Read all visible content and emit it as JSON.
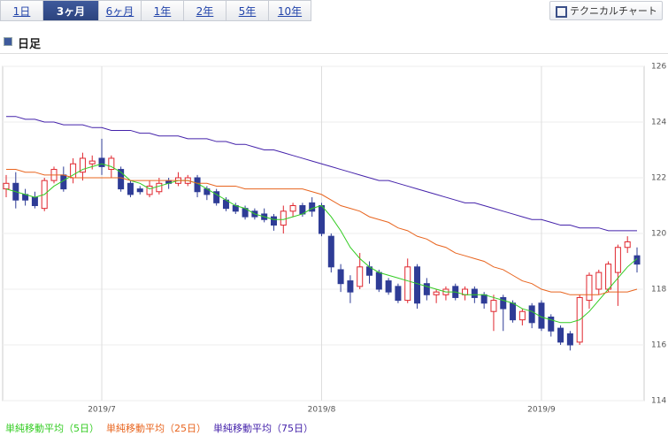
{
  "tabs": [
    {
      "label": "1日",
      "active": false
    },
    {
      "label": "3ヶ月",
      "active": true
    },
    {
      "label": "6ヶ月",
      "active": false
    },
    {
      "label": "1年",
      "active": false
    },
    {
      "label": "2年",
      "active": false
    },
    {
      "label": "5年",
      "active": false
    },
    {
      "label": "10年",
      "active": false
    }
  ],
  "button": "テクニカルチャート",
  "chart_data": {
    "type": "candlestick",
    "title": "日足",
    "categories": [
      null,
      null,
      null,
      null,
      null,
      null,
      null,
      null,
      null,
      null,
      "2019/7",
      null,
      null,
      null,
      null,
      null,
      null,
      null,
      null,
      null,
      null,
      null,
      null,
      null,
      null,
      null,
      null,
      null,
      null,
      null,
      null,
      null,
      null,
      "2019/8",
      null,
      null,
      null,
      null,
      null,
      null,
      null,
      null,
      null,
      null,
      null,
      null,
      null,
      null,
      null,
      null,
      null,
      null,
      null,
      null,
      null,
      null,
      "2019/9",
      null,
      null,
      null,
      null,
      null,
      null,
      null,
      null,
      null,
      null
    ],
    "open": [
      121.6,
      121.8,
      121.4,
      121.3,
      120.9,
      121.9,
      122.1,
      122.0,
      122.2,
      122.5,
      122.7,
      122.3,
      122.3,
      121.8,
      121.6,
      121.4,
      121.5,
      121.9,
      121.8,
      121.8,
      122.0,
      121.6,
      121.5,
      121.2,
      121.0,
      120.9,
      120.8,
      120.7,
      120.6,
      120.3,
      120.8,
      121.0,
      121.1,
      121.0,
      119.9,
      118.7,
      118.3,
      118.1,
      118.8,
      118.6,
      118.3,
      118.1,
      117.6,
      118.8,
      118.2,
      117.8,
      117.8,
      118.1,
      117.8,
      118.0,
      117.8,
      117.2,
      117.7,
      117.5,
      116.9,
      117.4,
      117.5,
      117.0,
      116.6,
      116.4,
      116.1,
      117.6,
      118.0,
      118.0,
      118.6,
      119.5,
      119.2
    ],
    "high": [
      122.1,
      122.2,
      121.6,
      121.5,
      122.0,
      122.4,
      122.4,
      122.7,
      122.9,
      122.8,
      123.4,
      122.8,
      122.4,
      121.9,
      121.7,
      121.9,
      122.0,
      122.0,
      122.2,
      122.1,
      122.1,
      121.7,
      121.6,
      121.3,
      121.1,
      121.0,
      120.9,
      120.9,
      120.7,
      121.0,
      121.1,
      121.1,
      121.3,
      121.1,
      120.0,
      118.9,
      118.5,
      119.3,
      119.0,
      118.7,
      118.4,
      118.2,
      119.1,
      118.9,
      118.4,
      118.0,
      118.1,
      118.2,
      118.1,
      118.1,
      117.9,
      117.8,
      117.8,
      117.6,
      117.3,
      117.5,
      117.6,
      117.1,
      116.7,
      116.5,
      117.8,
      118.6,
      118.7,
      119.0,
      119.6,
      119.9,
      119.5
    ],
    "low": [
      121.3,
      120.9,
      121.0,
      120.9,
      120.8,
      121.8,
      121.5,
      121.8,
      121.9,
      122.3,
      122.1,
      122.0,
      121.5,
      121.3,
      121.4,
      121.3,
      121.4,
      121.6,
      121.7,
      121.7,
      121.3,
      121.2,
      121.0,
      120.8,
      120.7,
      120.5,
      120.5,
      120.4,
      120.1,
      120.0,
      120.6,
      120.6,
      120.6,
      119.9,
      118.6,
      117.9,
      117.5,
      118.0,
      118.2,
      117.9,
      117.8,
      117.5,
      117.5,
      117.3,
      117.6,
      117.5,
      117.6,
      117.6,
      117.6,
      117.5,
      117.3,
      116.5,
      116.5,
      116.8,
      116.7,
      116.6,
      116.5,
      116.3,
      116.0,
      115.8,
      116.0,
      117.3,
      117.8,
      117.9,
      117.4,
      119.3,
      118.6
    ],
    "close": [
      121.8,
      121.2,
      121.2,
      121.0,
      121.9,
      122.3,
      121.6,
      122.5,
      122.7,
      122.6,
      122.4,
      122.7,
      121.6,
      121.4,
      121.5,
      121.7,
      121.8,
      121.8,
      122.0,
      122.0,
      121.5,
      121.4,
      121.1,
      120.9,
      120.8,
      120.6,
      120.6,
      120.5,
      120.3,
      120.8,
      121.0,
      120.7,
      120.8,
      120.0,
      118.8,
      118.2,
      117.9,
      118.8,
      118.5,
      118.0,
      117.9,
      117.6,
      118.8,
      117.5,
      117.8,
      117.9,
      118.0,
      117.7,
      118.0,
      117.7,
      117.5,
      117.6,
      117.3,
      116.9,
      117.2,
      116.8,
      116.6,
      116.5,
      116.1,
      116.0,
      117.7,
      118.5,
      118.6,
      118.9,
      119.5,
      119.7,
      118.9
    ],
    "up_color": "#e0262e",
    "down_color": "#2e3c96",
    "series": [
      {
        "name": "単純移動平均（5日）",
        "color": "#33cc22",
        "values": [
          121.6,
          121.5,
          121.4,
          121.3,
          121.4,
          121.7,
          121.9,
          122.1,
          122.3,
          122.4,
          122.5,
          122.4,
          122.2,
          121.9,
          121.8,
          121.6,
          121.7,
          121.8,
          121.9,
          121.9,
          121.8,
          121.6,
          121.4,
          121.2,
          121.0,
          120.9,
          120.7,
          120.6,
          120.5,
          120.5,
          120.6,
          120.7,
          120.9,
          121.0,
          120.6,
          120.1,
          119.5,
          119.1,
          118.8,
          118.6,
          118.5,
          118.4,
          118.3,
          118.2,
          118.1,
          118.0,
          117.9,
          117.9,
          117.8,
          117.8,
          117.8,
          117.7,
          117.6,
          117.5,
          117.3,
          117.2,
          117.0,
          116.9,
          116.8,
          116.8,
          116.9,
          117.2,
          117.6,
          118.0,
          118.4,
          118.8,
          119.1
        ]
      },
      {
        "name": "単純移動平均（25日）",
        "color": "#e8641e",
        "values": [
          122.3,
          122.3,
          122.2,
          122.2,
          122.1,
          122.1,
          122.1,
          122.0,
          122.0,
          122.0,
          122.0,
          122.0,
          122.0,
          121.9,
          121.9,
          121.9,
          121.9,
          121.9,
          121.9,
          121.9,
          121.8,
          121.8,
          121.7,
          121.7,
          121.7,
          121.6,
          121.6,
          121.6,
          121.6,
          121.6,
          121.6,
          121.6,
          121.5,
          121.4,
          121.2,
          121.0,
          120.9,
          120.8,
          120.6,
          120.5,
          120.4,
          120.2,
          120.1,
          119.9,
          119.8,
          119.6,
          119.5,
          119.3,
          119.2,
          119.1,
          119.0,
          118.8,
          118.7,
          118.5,
          118.3,
          118.2,
          118.0,
          117.9,
          117.9,
          117.8,
          117.8,
          117.8,
          117.8,
          117.9,
          117.9,
          117.9,
          118.0
        ]
      },
      {
        "name": "単純移動平均（75日）",
        "color": "#4422aa",
        "values": [
          124.2,
          124.2,
          124.1,
          124.1,
          124.0,
          124.0,
          123.9,
          123.9,
          123.9,
          123.8,
          123.8,
          123.7,
          123.7,
          123.7,
          123.6,
          123.6,
          123.5,
          123.5,
          123.5,
          123.4,
          123.4,
          123.4,
          123.3,
          123.3,
          123.2,
          123.2,
          123.1,
          123.0,
          123.0,
          122.9,
          122.8,
          122.7,
          122.6,
          122.5,
          122.4,
          122.3,
          122.2,
          122.1,
          122.0,
          121.9,
          121.9,
          121.8,
          121.7,
          121.6,
          121.5,
          121.4,
          121.3,
          121.2,
          121.1,
          121.1,
          121.0,
          120.9,
          120.8,
          120.7,
          120.6,
          120.5,
          120.5,
          120.4,
          120.3,
          120.3,
          120.2,
          120.2,
          120.2,
          120.1,
          120.1,
          120.1,
          120.1
        ]
      }
    ],
    "ylim": [
      114,
      126
    ],
    "yticks": [
      114,
      116,
      118,
      120,
      122,
      124,
      126
    ],
    "grid": true
  }
}
